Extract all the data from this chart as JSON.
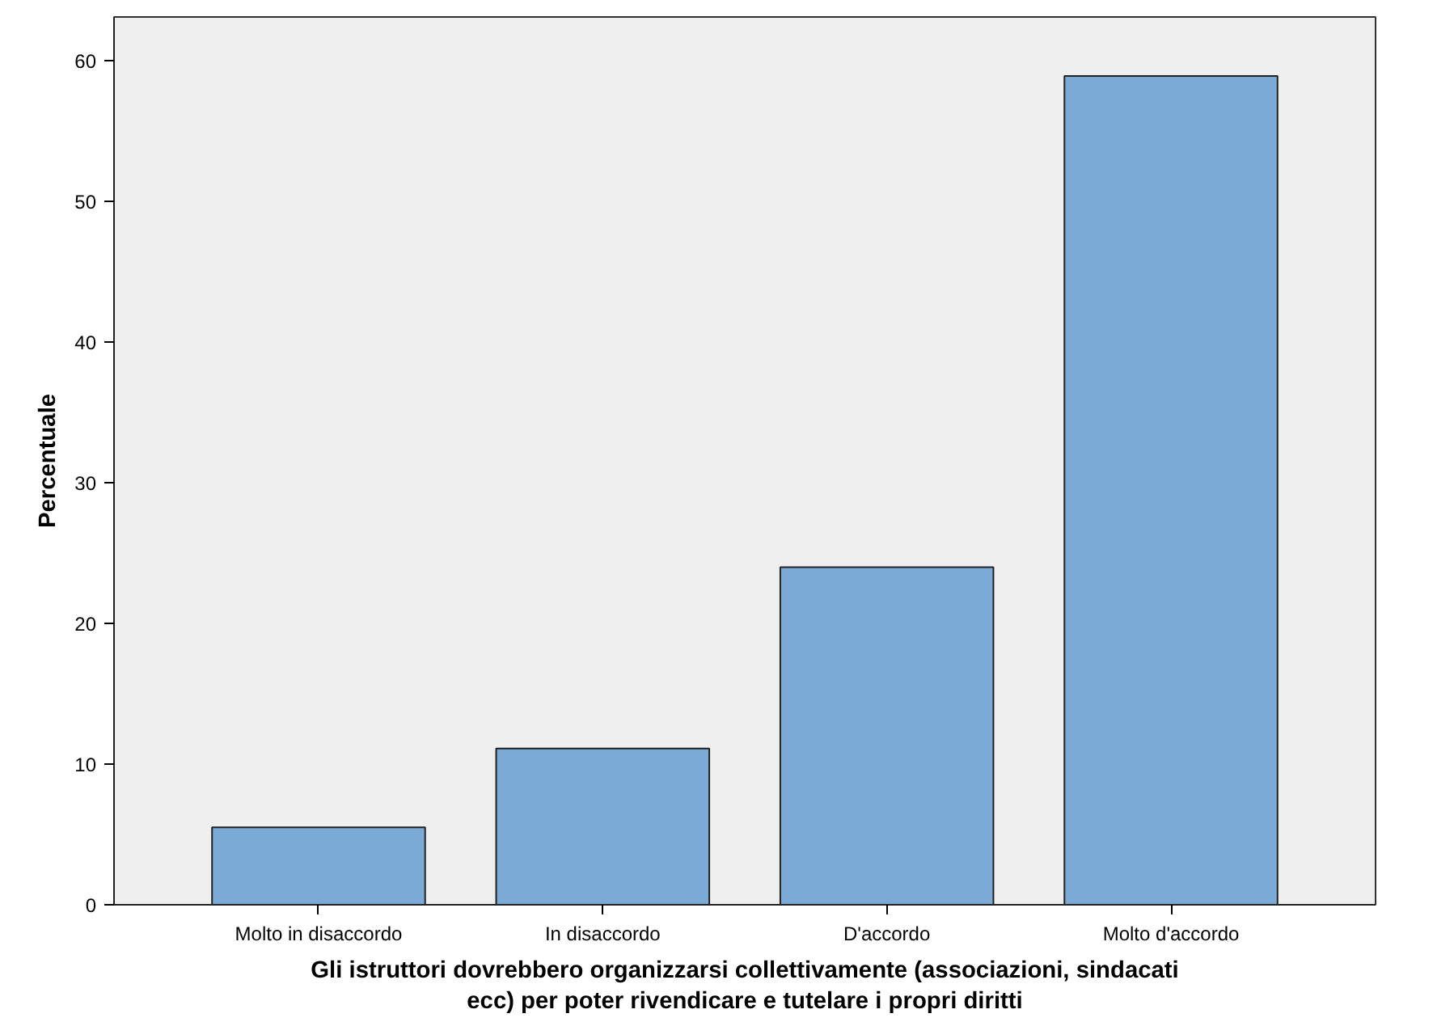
{
  "chart_data": {
    "type": "bar",
    "xlabel": "Gli istruttori dovrebbero organizzarsi collettivamente (associazioni, sindacati ecc) per poter rivendicare e tutelare i propri diritti",
    "ylabel": "Percentuale",
    "categories": [
      "Molto in disaccordo",
      "In disaccordo",
      "D'accordo",
      "Molto d'accordo"
    ],
    "values": [
      5.5,
      11.1,
      24.0,
      58.9
    ],
    "color": "#7baad6",
    "ylim": [
      0,
      63.1
    ],
    "yticks": [
      0,
      10,
      20,
      30,
      40,
      50,
      60
    ],
    "grid": false
  }
}
